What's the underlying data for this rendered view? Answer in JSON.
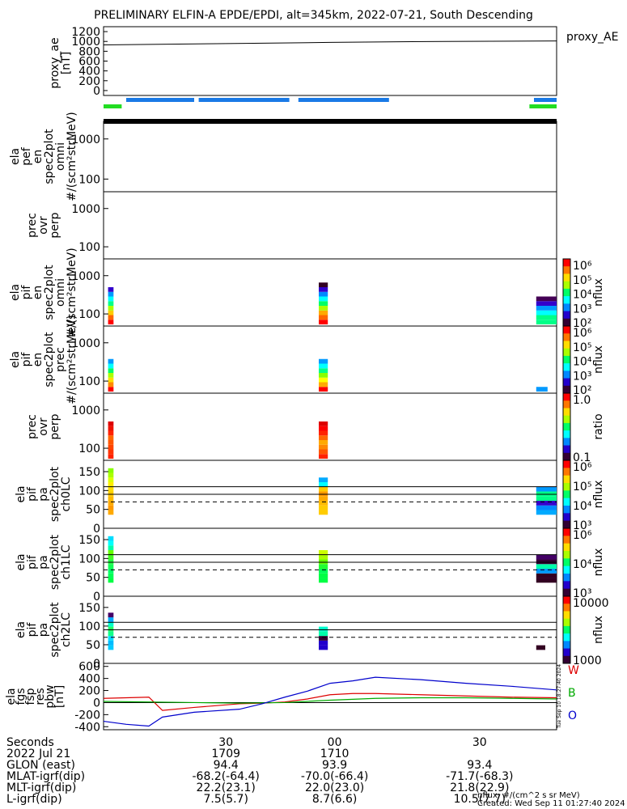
{
  "title": "PRELIMINARY ELFIN-A EPDE/EPDI, alt=345km, 2022-07-21, South Descending",
  "colors": {
    "blue_bar": "#1a7ae6",
    "green_bar": "#22dd22",
    "series_w": "#dd0000",
    "series_b": "#00aa00",
    "series_o": "#0000cc"
  },
  "chart_data": [
    {
      "type": "line",
      "panel": "proxy_ae",
      "ylabel": [
        "proxy_ae",
        "[nT]"
      ],
      "ylim": [
        -100,
        1300
      ],
      "yticks": [
        "1200",
        "1000",
        "800",
        "600",
        "400",
        "200",
        "0"
      ],
      "legend": "proxy_AE",
      "series": [
        {
          "name": "proxy_AE",
          "x": [
            0,
            0.25,
            0.5,
            0.75,
            1
          ],
          "values": [
            930,
            955,
            980,
            1000,
            1010
          ]
        }
      ]
    },
    {
      "type": "bar",
      "panel": "coverage_bars",
      "colors": [
        "blue",
        "green"
      ],
      "blue_segments": [
        [
          0.05,
          0.2
        ],
        [
          0.21,
          0.41
        ],
        [
          0.43,
          0.63
        ],
        [
          0.95,
          1.0
        ]
      ],
      "green_segments": [
        [
          0.0,
          0.04
        ],
        [
          0.94,
          1.0
        ]
      ]
    },
    {
      "type": "heatmap",
      "panel": "elx_pef_en_spec2plot_omni",
      "ylabel": [
        "ela",
        "pef",
        "en",
        "spec2plot",
        "omni",
        "#/(scm²strMeV)"
      ],
      "yscale": "log",
      "yticks": [
        "1000",
        "100"
      ],
      "cells": []
    },
    {
      "type": "heatmap",
      "panel": "elx_pef_prec_ovr_perp",
      "ylabel": [
        "prec",
        "ovr",
        "perp"
      ],
      "yscale": "log",
      "yticks": [
        "1000",
        "100"
      ],
      "cells": []
    },
    {
      "type": "heatmap",
      "panel": "elx_pif_en_spec2plot_omni",
      "ylabel": [
        "ela",
        "pif",
        "en",
        "spec2plot",
        "omni",
        "#/(scm²strMeV)"
      ],
      "yscale": "log",
      "yticks": [
        "1000",
        "100"
      ],
      "colorbar": {
        "label": "nflux",
        "ticks": [
          "10⁶",
          "10⁵",
          "10⁴",
          "10³",
          "10²"
        ]
      },
      "columns": [
        {
          "x": 0.01,
          "w": 0.012,
          "colors": [
            "#ff0000",
            "#ff6600",
            "#ffcc00",
            "#aaff00",
            "#00ff88",
            "#00ffff",
            "#0099ff",
            "#3300cc"
          ]
        },
        {
          "x": 0.475,
          "w": 0.02,
          "colors": [
            "#ff0000",
            "#ff6600",
            "#ffaa00",
            "#aaff00",
            "#00ff66",
            "#00ffff",
            "#0088ff",
            "#3300cc",
            "#330022"
          ]
        },
        {
          "x": 0.955,
          "w": 0.045,
          "colors": [
            "#00ff88",
            "#00ff88",
            "#00ffff",
            "#0099ff",
            "#3300cc",
            "#440055"
          ]
        }
      ]
    },
    {
      "type": "heatmap",
      "panel": "elx_pif_en_spec2plot_prec",
      "ylabel": [
        "ela",
        "pif",
        "en",
        "spec2plot",
        "prec",
        "#/(scm²strMeV)"
      ],
      "yscale": "log",
      "yticks": [
        "1000",
        "100"
      ],
      "colorbar": {
        "label": "nflux",
        "ticks": [
          "10⁶",
          "10⁵",
          "10⁴",
          "10³",
          "10²"
        ]
      },
      "columns": [
        {
          "x": 0.01,
          "w": 0.012,
          "colors": [
            "#ff0000",
            "#ff8800",
            "#ffdd00",
            "#aaff00",
            "#00ff66",
            "#00ffff",
            "#0099ff"
          ]
        },
        {
          "x": 0.475,
          "w": 0.02,
          "colors": [
            "#ff0000",
            "#ffaa00",
            "#ffff00",
            "#88ff00",
            "#00ff88",
            "#00ffff",
            "#0099ff"
          ]
        },
        {
          "x": 0.955,
          "w": 0.025,
          "colors": [
            "#0099ff"
          ]
        }
      ]
    },
    {
      "type": "heatmap",
      "panel": "elx_pif_prec_ovr_perp",
      "ylabel": [
        "prec",
        "ovr",
        "perp"
      ],
      "yscale": "log",
      "yticks": [
        "1000",
        "100"
      ],
      "colorbar": {
        "label": "ratio",
        "ticks": [
          "1.0",
          "0.1"
        ]
      },
      "columns": [
        {
          "x": 0.01,
          "w": 0.012,
          "colors": [
            "#ff2200",
            "#ff3300",
            "#ff4400",
            "#ff5500",
            "#ff6600",
            "#ff2200",
            "#ee1100",
            "#dd0000"
          ]
        },
        {
          "x": 0.475,
          "w": 0.02,
          "colors": [
            "#ff2200",
            "#ff5500",
            "#ff8800",
            "#ffaa00",
            "#ff6600",
            "#ff2200",
            "#ff0000",
            "#dd0000"
          ]
        }
      ]
    },
    {
      "type": "heatmap",
      "panel": "elx_pif_pa_ch0LC",
      "ylabel": [
        "ela",
        "pif",
        "pa",
        "spec2plot",
        "ch0LC"
      ],
      "ylim": [
        0,
        180
      ],
      "yticks": [
        "150",
        "100",
        "50",
        "0"
      ],
      "colorbar": {
        "label": "nflux",
        "ticks": [
          "10⁶",
          "10⁵",
          "10⁴",
          "10³"
        ]
      },
      "lines": {
        "solid": [
          110,
          90
        ],
        "dashed": [
          70
        ]
      },
      "columns": [
        {
          "x": 0.01,
          "w": 0.012,
          "colors": [
            "#ffaa00",
            "#ff9900",
            "#ffaa00",
            "#ffbb00",
            "#ffcc00",
            "#ffdd00",
            "#ffee00",
            "#ddff00",
            "#aaff00",
            "#88ff00"
          ]
        },
        {
          "x": 0.475,
          "w": 0.02,
          "colors": [
            "#ffcc00",
            "#ffcc00",
            "#ffbb00",
            "#ffaa00",
            "#ff9900",
            "#ffcc00",
            "#00ffff",
            "#00aaff"
          ]
        },
        {
          "x": 0.955,
          "w": 0.045,
          "colors": [
            "#00aaff",
            "#0088ff",
            "#3300cc",
            "#00ff88",
            "#00ff88",
            "#0099ff"
          ]
        }
      ]
    },
    {
      "type": "heatmap",
      "panel": "elx_pif_pa_ch1LC",
      "ylabel": [
        "ela",
        "pif",
        "pa",
        "spec2plot",
        "ch1LC"
      ],
      "ylim": [
        0,
        180
      ],
      "yticks": [
        "150",
        "100",
        "50",
        "0"
      ],
      "colorbar": {
        "label": "nflux",
        "ticks": [
          "10⁶",
          "10⁴",
          "10³"
        ]
      },
      "lines": {
        "solid": [
          110,
          90
        ],
        "dashed": [
          70
        ]
      },
      "columns": [
        {
          "x": 0.01,
          "w": 0.012,
          "colors": [
            "#00ff44",
            "#00ff55",
            "#00ff66",
            "#11ff55",
            "#22ff44",
            "#44ff22",
            "#66ff00",
            "#00ffaa",
            "#00ffff",
            "#00ddff"
          ]
        },
        {
          "x": 0.475,
          "w": 0.02,
          "colors": [
            "#00ff44",
            "#00ff44",
            "#00ff55",
            "#22ff33",
            "#66ff00",
            "#aaff00",
            "#ccff00"
          ]
        },
        {
          "x": 0.955,
          "w": 0.045,
          "colors": [
            "#330022",
            "#330022",
            "#0099ff",
            "#00ffaa",
            "#330033",
            "#440066"
          ]
        }
      ]
    },
    {
      "type": "heatmap",
      "panel": "elx_pif_pa_ch2LC",
      "ylabel": [
        "ela",
        "pif",
        "pa",
        "spec2plot",
        "ch2LC"
      ],
      "ylim": [
        0,
        180
      ],
      "yticks": [
        "150",
        "100",
        "50",
        "0"
      ],
      "colorbar": {
        "label": "nflux",
        "ticks": [
          "10000",
          "1000"
        ]
      },
      "lines": {
        "solid": [
          110,
          90
        ],
        "dashed": [
          70
        ]
      },
      "columns": [
        {
          "x": 0.01,
          "w": 0.012,
          "colors": [
            "#00ccff",
            "#00bbff",
            "#00ddff",
            "#11ff88",
            "#22ff66",
            "#00ffcc",
            "#00aaff",
            "#440066"
          ]
        },
        {
          "x": 0.475,
          "w": 0.02,
          "colors": [
            "#2200cc",
            "#2200cc",
            "#330033",
            "#00ffaa",
            "#00ffcc"
          ]
        },
        {
          "x": 0.955,
          "w": 0.02,
          "colors": [
            "#330022"
          ]
        }
      ]
    },
    {
      "type": "line",
      "panel": "fgs_res_pbw",
      "ylabel": [
        "ela",
        "fgs",
        "fsp",
        "res",
        "pbw",
        "[nT]"
      ],
      "ylim": [
        -450,
        650
      ],
      "yticks": [
        "600",
        "400",
        "200",
        "0",
        "-200",
        "-400"
      ],
      "legend": [
        "W",
        "B",
        "O"
      ],
      "series": [
        {
          "name": "W",
          "x": [
            0,
            0.05,
            0.1,
            0.13,
            0.2,
            0.3,
            0.35,
            0.4,
            0.45,
            0.5,
            0.55,
            0.6,
            0.7,
            0.8,
            0.9,
            1
          ],
          "values": [
            70,
            80,
            90,
            -130,
            -80,
            -20,
            -10,
            10,
            60,
            130,
            150,
            150,
            130,
            110,
            90,
            80
          ]
        },
        {
          "name": "B",
          "x": [
            0,
            0.1,
            0.2,
            0.3,
            0.4,
            0.5,
            0.6,
            0.7,
            0.8,
            0.9,
            1
          ],
          "values": [
            20,
            10,
            0,
            -10,
            0,
            40,
            70,
            80,
            80,
            70,
            60
          ]
        },
        {
          "name": "O",
          "x": [
            0,
            0.05,
            0.1,
            0.13,
            0.2,
            0.3,
            0.35,
            0.4,
            0.45,
            0.5,
            0.55,
            0.6,
            0.7,
            0.8,
            0.9,
            1
          ],
          "values": [
            -310,
            -360,
            -390,
            -240,
            -160,
            -110,
            -20,
            90,
            190,
            320,
            360,
            420,
            380,
            320,
            270,
            210
          ]
        }
      ]
    }
  ],
  "xaxis": {
    "ticks": [
      {
        "pos": 0.27,
        "label": "30",
        "date": "1709",
        "glon": "94.4",
        "mlat": "-68.2(-64.4)",
        "mlt": "22.2(23.1)",
        "l": "7.5(5.7)"
      },
      {
        "pos": 0.51,
        "label": "00",
        "date": "1710",
        "glon": "93.9",
        "mlat": "-70.0(-66.4)",
        "mlt": "22.0(23.0)",
        "l": "8.7(6.6)"
      },
      {
        "pos": 0.83,
        "label": "30",
        "date": "",
        "glon": "93.4",
        "mlat": "-71.7(-68.3)",
        "mlt": "21.8(22.9)",
        "l": "10.5(7.7)"
      }
    ],
    "row_labels": [
      "Seconds",
      "2022 Jul 21",
      "GLON (east)",
      "MLAT-igrf(dip)",
      "MLT-igrf(dip)",
      "L-igrf(dip)"
    ]
  },
  "footer": {
    "nflux_units": "nflux: #/(cm^2 s sr MeV)",
    "created": "Created: Wed Sep 11 01:27:40 2024",
    "side_stamp": "Tue Sep 10 18:27:40 2024"
  }
}
